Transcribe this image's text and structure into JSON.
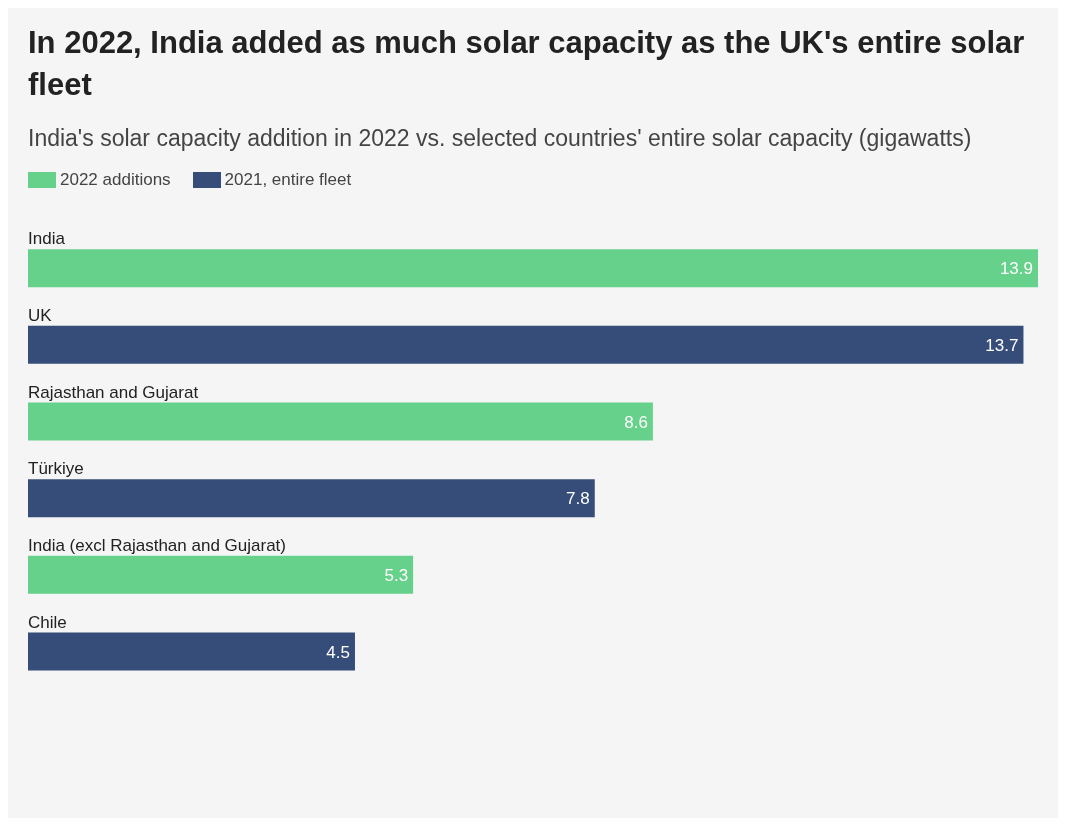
{
  "chart_data": {
    "type": "bar",
    "orientation": "horizontal",
    "stacked": true,
    "title": "In 2022, India added as much solar capacity as the UK's entire solar fleet",
    "subtitle": "India's solar capacity addition in 2022 vs. selected countries' entire solar capacity (gigawatts)",
    "categories": [
      "India",
      "UK",
      "Rajasthan and Gujarat",
      "Türkiye",
      "India (excl Rajasthan and Gujarat)",
      "Chile"
    ],
    "series": [
      {
        "name": "2022 additions",
        "color": "#66d18a",
        "values": [
          13.9,
          null,
          8.6,
          null,
          5.3,
          null
        ]
      },
      {
        "name": "2021, entire fleet",
        "color": "#364d7a",
        "values": [
          null,
          13.7,
          null,
          7.8,
          null,
          4.5
        ]
      }
    ],
    "data_labels": true,
    "legend": "top left",
    "grid": false
  }
}
